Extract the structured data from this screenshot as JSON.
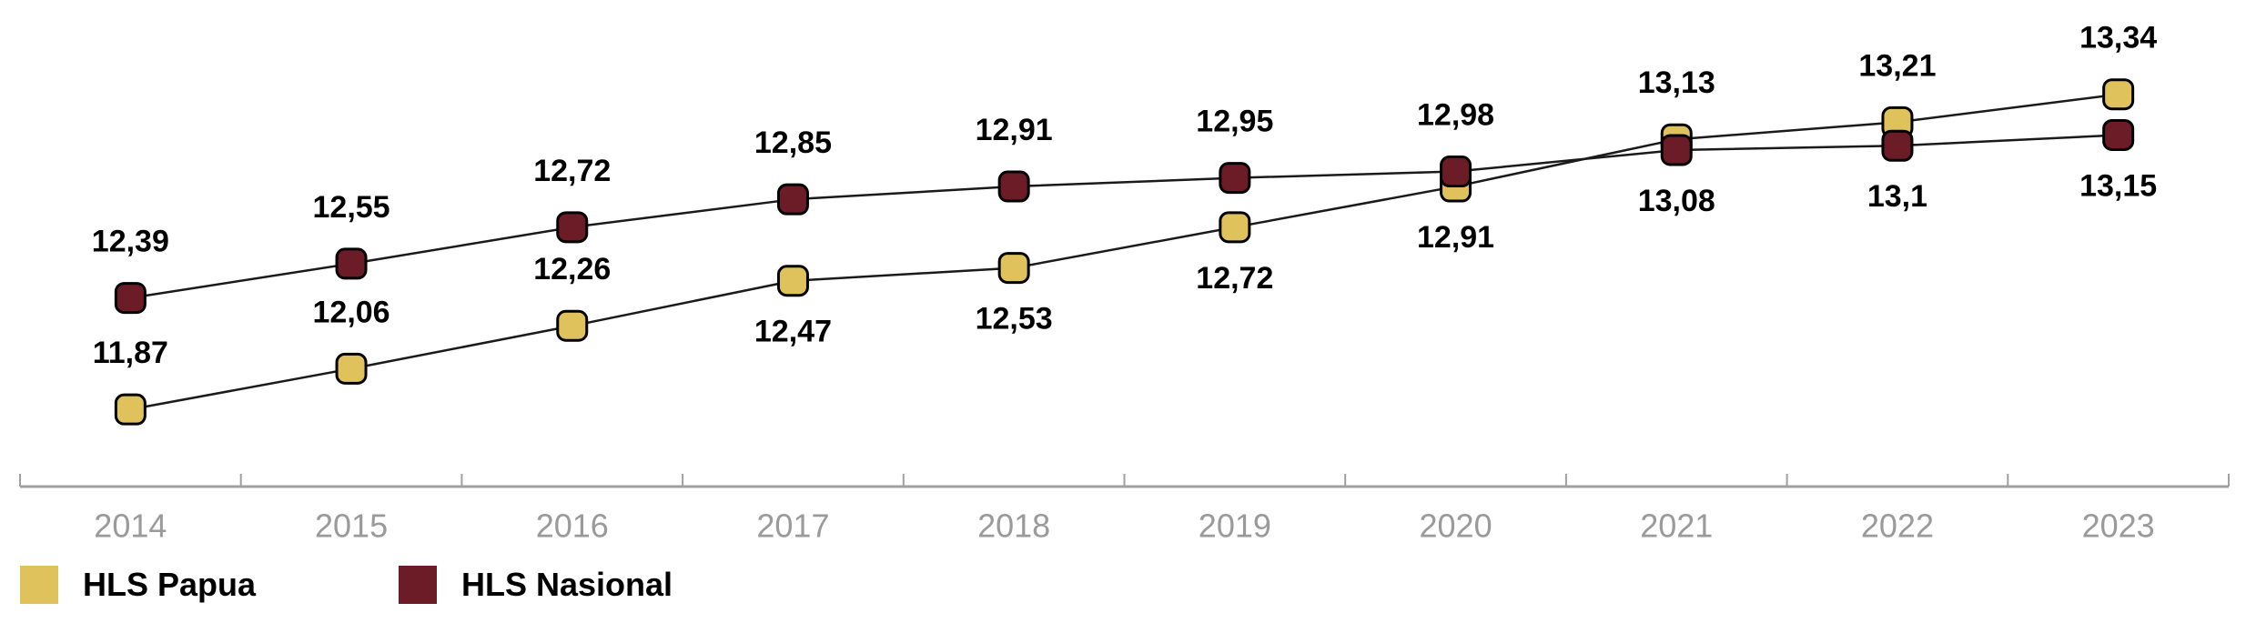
{
  "chart_data": {
    "type": "line",
    "title": "",
    "xlabel": "",
    "ylabel": "",
    "categories": [
      "2014",
      "2015",
      "2016",
      "2017",
      "2018",
      "2019",
      "2020",
      "2021",
      "2022",
      "2023"
    ],
    "ylim": [
      11.51,
      13.78
    ],
    "grid": false,
    "legend_position": "bottom-left",
    "series": [
      {
        "name": "HLS Papua",
        "color": "#dfc25c",
        "values": [
          11.87,
          12.06,
          12.26,
          12.47,
          12.53,
          12.72,
          12.91,
          13.13,
          13.21,
          13.34
        ],
        "labels": [
          "11,87",
          "12,06",
          "12,26",
          "12,47",
          "12,53",
          "12,72",
          "12,91",
          "13,13",
          "13,21",
          "13,34"
        ],
        "label_side": [
          "above",
          "above",
          "above",
          "below",
          "below",
          "below",
          "below",
          "above",
          "above",
          "above"
        ]
      },
      {
        "name": "HLS Nasional",
        "color": "#6b1c26",
        "values": [
          12.39,
          12.55,
          12.72,
          12.85,
          12.91,
          12.95,
          12.98,
          13.08,
          13.1,
          13.15
        ],
        "labels": [
          "12,39",
          "12,55",
          "12,72",
          "12,85",
          "12,91",
          "12,95",
          "12,98",
          "13,08",
          "13,1",
          "13,15"
        ],
        "label_side": [
          "above",
          "above",
          "above",
          "above",
          "above",
          "above",
          "above",
          "below",
          "below",
          "below"
        ]
      }
    ]
  }
}
